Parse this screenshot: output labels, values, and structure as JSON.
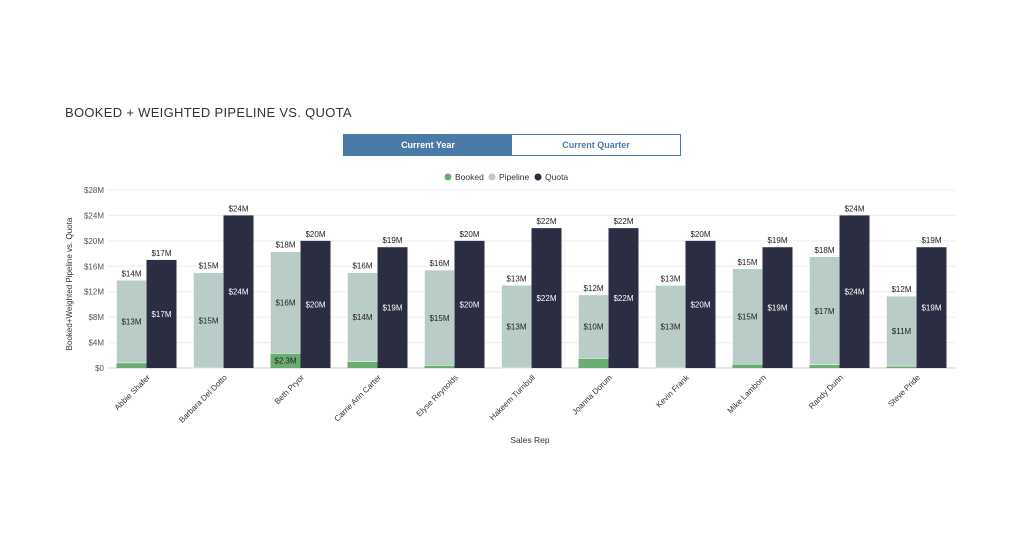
{
  "page": {
    "title": "BOOKED + WEIGHTED PIPELINE VS. QUOTA"
  },
  "toggle": {
    "options": [
      "Current Year",
      "Current Quarter"
    ],
    "selected": "Current Year"
  },
  "colors": {
    "booked": "#6aad72",
    "pipeline": "#b9ccc8",
    "quota": "#2b2d42",
    "accent": "#4a7aa8"
  },
  "chart_data": {
    "type": "bar",
    "stacked_first_bar": true,
    "categories": [
      "Abbie Shafer",
      "Barbara Del Dotto",
      "Beth Pryor",
      "Carrie Ann Carter",
      "Elyse Reynolds",
      "Hakeem Turnbull",
      "Joanna Dorum",
      "Kevin Frank",
      "Mike Lamborn",
      "Randy Dunn",
      "Steve Pride"
    ],
    "series": [
      {
        "name": "Booked",
        "values": [
          0.8,
          0,
          2.3,
          1.0,
          0.4,
          0,
          1.5,
          0,
          0.6,
          0.5,
          0.3
        ],
        "labels": [
          "",
          "",
          "$2.3M",
          "",
          "",
          "",
          "",
          "",
          "",
          "",
          ""
        ]
      },
      {
        "name": "Pipeline",
        "values": [
          13.0,
          15.0,
          16.0,
          14.0,
          15.0,
          13.0,
          10.0,
          13.0,
          15.0,
          17.0,
          11.0
        ],
        "labels": [
          "$13M",
          "$15M",
          "$16M",
          "$14M",
          "$15M",
          "$13M",
          "$10M",
          "$13M",
          "$15M",
          "$17M",
          "$11M"
        ]
      },
      {
        "name": "Quota",
        "values": [
          17,
          24,
          20,
          19,
          20,
          22,
          22,
          20,
          19,
          24,
          19
        ],
        "labels": [
          "$17M",
          "$24M",
          "$20M",
          "$19M",
          "$20M",
          "$22M",
          "$22M",
          "$20M",
          "$19M",
          "$24M",
          "$19M"
        ]
      }
    ],
    "booked_pipeline_totals": [
      "$14M",
      "$15M",
      "$18M",
      "$16M",
      "$16M",
      "$13M",
      "$12M",
      "$13M",
      "$15M",
      "$18M",
      "$12M"
    ],
    "quota_totals": [
      "$17M",
      "$24M",
      "$20M",
      "$19M",
      "$20M",
      "$22M",
      "$22M",
      "$20M",
      "$19M",
      "$24M",
      "$19M"
    ],
    "ylim": [
      0,
      28
    ],
    "yticks": [
      "$0",
      "$4M",
      "$8M",
      "$12M",
      "$16M",
      "$20M",
      "$24M",
      "$28M"
    ],
    "xlabel": "Sales Rep",
    "ylabel": "Booked+Weighted Pipeline vs. Quota",
    "legend": [
      "Booked",
      "Pipeline",
      "Quota"
    ],
    "legend_position": "top-center",
    "grid": true
  }
}
